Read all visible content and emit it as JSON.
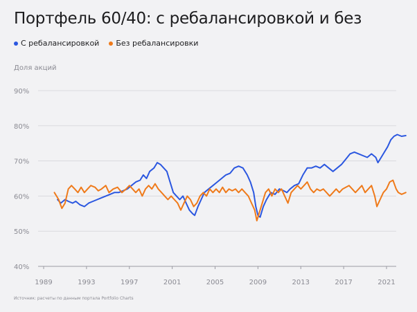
{
  "title": "Портфель 60/40: с ребалансировкой и без",
  "source": "Источник: расчеты по данным портала Portfolio Charts",
  "chart_data": {
    "type": "line",
    "ylabel": "Доля акций",
    "ylim": [
      40,
      90
    ],
    "xlim": [
      1989,
      2023
    ],
    "y_ticks": [
      "90%",
      "80%",
      "70%",
      "60%",
      "50%",
      "40%"
    ],
    "y_tick_values": [
      90,
      80,
      70,
      60,
      50,
      40
    ],
    "x_ticks": [
      "1989",
      "1993",
      "1997",
      "2001",
      "2005",
      "2009",
      "2013",
      "2017",
      "2021"
    ],
    "x_tick_values": [
      1989,
      1993,
      1997,
      2001,
      2005,
      2009,
      2013,
      2017,
      2021
    ],
    "grid": true,
    "legend_position": "top-left",
    "series": [
      {
        "name": "С ребалансировкой",
        "color": "#2b57e0",
        "points": [
          [
            1990.3,
            59
          ],
          [
            1990.6,
            58
          ],
          [
            1991.0,
            59
          ],
          [
            1991.3,
            58.5
          ],
          [
            1991.7,
            58
          ],
          [
            1992.0,
            58.5
          ],
          [
            1992.4,
            57.5
          ],
          [
            1992.8,
            57
          ],
          [
            1993.2,
            58
          ],
          [
            1993.6,
            58.5
          ],
          [
            1994.0,
            59
          ],
          [
            1994.4,
            59.5
          ],
          [
            1994.8,
            60
          ],
          [
            1995.2,
            60.5
          ],
          [
            1995.6,
            61
          ],
          [
            1996.0,
            61
          ],
          [
            1996.4,
            61.5
          ],
          [
            1996.8,
            62
          ],
          [
            1997.2,
            63
          ],
          [
            1997.6,
            64
          ],
          [
            1998.0,
            64.5
          ],
          [
            1998.3,
            66
          ],
          [
            1998.6,
            65
          ],
          [
            1998.9,
            67
          ],
          [
            1999.3,
            68
          ],
          [
            1999.6,
            69.5
          ],
          [
            1999.9,
            69
          ],
          [
            2000.2,
            68
          ],
          [
            2000.5,
            67
          ],
          [
            2000.8,
            64
          ],
          [
            2001.1,
            61
          ],
          [
            2001.4,
            60
          ],
          [
            2001.7,
            59
          ],
          [
            2002.0,
            60
          ],
          [
            2002.3,
            58
          ],
          [
            2002.6,
            56
          ],
          [
            2002.9,
            55
          ],
          [
            2003.1,
            54.5
          ],
          [
            2003.4,
            57
          ],
          [
            2003.7,
            59
          ],
          [
            2004.0,
            61
          ],
          [
            2004.4,
            62
          ],
          [
            2004.8,
            63
          ],
          [
            2005.2,
            64
          ],
          [
            2005.6,
            65
          ],
          [
            2006.0,
            66
          ],
          [
            2006.4,
            66.5
          ],
          [
            2006.8,
            68
          ],
          [
            2007.2,
            68.5
          ],
          [
            2007.6,
            68
          ],
          [
            2008.0,
            66
          ],
          [
            2008.3,
            64
          ],
          [
            2008.6,
            61
          ],
          [
            2008.8,
            57
          ],
          [
            2009.0,
            54.5
          ],
          [
            2009.2,
            54
          ],
          [
            2009.5,
            57
          ],
          [
            2009.8,
            59
          ],
          [
            2010.2,
            61
          ],
          [
            2010.6,
            60.5
          ],
          [
            2011.0,
            62
          ],
          [
            2011.4,
            61.5
          ],
          [
            2011.7,
            61
          ],
          [
            2012.0,
            62
          ],
          [
            2012.4,
            63
          ],
          [
            2012.8,
            63.5
          ],
          [
            2013.2,
            66
          ],
          [
            2013.6,
            68
          ],
          [
            2014.0,
            68
          ],
          [
            2014.4,
            68.5
          ],
          [
            2014.8,
            68
          ],
          [
            2015.2,
            69
          ],
          [
            2015.6,
            68
          ],
          [
            2016.0,
            67
          ],
          [
            2016.4,
            68
          ],
          [
            2016.8,
            69
          ],
          [
            2017.2,
            70.5
          ],
          [
            2017.6,
            72
          ],
          [
            2018.0,
            72.5
          ],
          [
            2018.4,
            72
          ],
          [
            2018.8,
            71.5
          ],
          [
            2019.2,
            71
          ],
          [
            2019.6,
            72
          ],
          [
            2020.0,
            71
          ],
          [
            2020.2,
            69.5
          ],
          [
            2020.5,
            71
          ],
          [
            2020.8,
            72.5
          ],
          [
            2021.1,
            74
          ],
          [
            2021.4,
            76
          ],
          [
            2021.7,
            77
          ],
          [
            2022.0,
            77.5
          ],
          [
            2022.4,
            77
          ],
          [
            2022.8,
            77.2
          ]
        ]
      },
      {
        "name": "Без ребалансировки",
        "color": "#ef7a1a",
        "points": [
          [
            1990.0,
            61
          ],
          [
            1990.2,
            60
          ],
          [
            1990.4,
            59
          ],
          [
            1990.7,
            56.5
          ],
          [
            1991.0,
            58
          ],
          [
            1991.3,
            62
          ],
          [
            1991.6,
            63
          ],
          [
            1991.9,
            62
          ],
          [
            1992.2,
            61
          ],
          [
            1992.5,
            62.5
          ],
          [
            1992.8,
            61
          ],
          [
            1993.1,
            62
          ],
          [
            1993.4,
            63
          ],
          [
            1993.8,
            62.5
          ],
          [
            1994.1,
            61.5
          ],
          [
            1994.4,
            62
          ],
          [
            1994.8,
            63
          ],
          [
            1995.1,
            61
          ],
          [
            1995.5,
            62
          ],
          [
            1995.9,
            62.5
          ],
          [
            1996.3,
            61
          ],
          [
            1996.7,
            62
          ],
          [
            1997.0,
            63
          ],
          [
            1997.3,
            62
          ],
          [
            1997.6,
            61
          ],
          [
            1997.9,
            62
          ],
          [
            1998.2,
            60
          ],
          [
            1998.5,
            62
          ],
          [
            1998.8,
            63
          ],
          [
            1999.1,
            62
          ],
          [
            1999.4,
            63.5
          ],
          [
            1999.7,
            62
          ],
          [
            2000.0,
            61
          ],
          [
            2000.3,
            60
          ],
          [
            2000.6,
            59
          ],
          [
            2000.9,
            60
          ],
          [
            2001.2,
            59
          ],
          [
            2001.5,
            58
          ],
          [
            2001.8,
            56
          ],
          [
            2002.1,
            58
          ],
          [
            2002.4,
            60
          ],
          [
            2002.7,
            59
          ],
          [
            2003.0,
            57
          ],
          [
            2003.3,
            58
          ],
          [
            2003.6,
            60
          ],
          [
            2003.9,
            61
          ],
          [
            2004.2,
            60
          ],
          [
            2004.5,
            62
          ],
          [
            2004.8,
            61
          ],
          [
            2005.1,
            62
          ],
          [
            2005.4,
            61
          ],
          [
            2005.7,
            62.5
          ],
          [
            2006.0,
            61
          ],
          [
            2006.3,
            62
          ],
          [
            2006.6,
            61.5
          ],
          [
            2006.9,
            62
          ],
          [
            2007.2,
            61
          ],
          [
            2007.5,
            62
          ],
          [
            2007.8,
            61
          ],
          [
            2008.1,
            60
          ],
          [
            2008.4,
            58
          ],
          [
            2008.7,
            56
          ],
          [
            2008.9,
            53
          ],
          [
            2009.1,
            55
          ],
          [
            2009.4,
            58
          ],
          [
            2009.7,
            61
          ],
          [
            2010.0,
            62
          ],
          [
            2010.3,
            60
          ],
          [
            2010.6,
            62
          ],
          [
            2010.9,
            61
          ],
          [
            2011.2,
            62
          ],
          [
            2011.5,
            60
          ],
          [
            2011.8,
            58
          ],
          [
            2012.1,
            61
          ],
          [
            2012.4,
            62
          ],
          [
            2012.7,
            63
          ],
          [
            2013.0,
            62
          ],
          [
            2013.3,
            63
          ],
          [
            2013.6,
            64
          ],
          [
            2013.9,
            62
          ],
          [
            2014.2,
            61
          ],
          [
            2014.5,
            62
          ],
          [
            2014.8,
            61.5
          ],
          [
            2015.1,
            62
          ],
          [
            2015.4,
            61
          ],
          [
            2015.7,
            60
          ],
          [
            2016.0,
            61
          ],
          [
            2016.3,
            62
          ],
          [
            2016.6,
            61
          ],
          [
            2016.9,
            62
          ],
          [
            2017.2,
            62.5
          ],
          [
            2017.5,
            63
          ],
          [
            2017.8,
            62
          ],
          [
            2018.1,
            61
          ],
          [
            2018.4,
            62
          ],
          [
            2018.7,
            63
          ],
          [
            2019.0,
            61
          ],
          [
            2019.3,
            62
          ],
          [
            2019.6,
            63
          ],
          [
            2019.9,
            60
          ],
          [
            2020.1,
            57
          ],
          [
            2020.4,
            59
          ],
          [
            2020.7,
            61
          ],
          [
            2021.0,
            62
          ],
          [
            2021.3,
            64
          ],
          [
            2021.6,
            64.5
          ],
          [
            2021.9,
            62
          ],
          [
            2022.1,
            61
          ],
          [
            2022.4,
            60.5
          ],
          [
            2022.8,
            61
          ]
        ]
      }
    ]
  }
}
